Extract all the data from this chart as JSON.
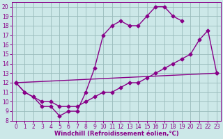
{
  "xlabel": "Windchill (Refroidissement éolien,°C)",
  "bg_color": "#cce8e8",
  "line_color": "#880088",
  "grid_color": "#99bbbb",
  "xlim": [
    -0.5,
    23.5
  ],
  "ylim": [
    8,
    20.5
  ],
  "xticks": [
    0,
    1,
    2,
    3,
    4,
    5,
    6,
    7,
    8,
    9,
    10,
    11,
    12,
    13,
    14,
    15,
    16,
    17,
    18,
    19,
    20,
    21,
    22,
    23
  ],
  "yticks": [
    8,
    9,
    10,
    11,
    12,
    13,
    14,
    15,
    16,
    17,
    18,
    19,
    20
  ],
  "line1_x": [
    0,
    1,
    2,
    3,
    4,
    5,
    6,
    7,
    8,
    9,
    10,
    11,
    12,
    13,
    14,
    15,
    16,
    17,
    18,
    19
  ],
  "line1_y": [
    12,
    11,
    10.5,
    9.5,
    9.5,
    8.5,
    9,
    9,
    11,
    13.5,
    17,
    18,
    18.5,
    18,
    18,
    19,
    20,
    20,
    19,
    18.5
  ],
  "line2_x": [
    0,
    1,
    2,
    3,
    4,
    5,
    6,
    7,
    8,
    9,
    10,
    11,
    12,
    13,
    14,
    15,
    16,
    17,
    18,
    19,
    20,
    21,
    22,
    23
  ],
  "line2_y": [
    12,
    11,
    10.5,
    10,
    10,
    9.5,
    9.5,
    9.5,
    10,
    10.5,
    11,
    11,
    11.5,
    12,
    12,
    12.5,
    13,
    13.5,
    14,
    14.5,
    15,
    16.5,
    17.5,
    13
  ],
  "line3_x": [
    0,
    23
  ],
  "line3_y": [
    12,
    13
  ],
  "marker": "D",
  "markersize": 2.5,
  "linewidth": 1.0,
  "tick_fontsize": 5.5,
  "xlabel_fontsize": 6.0
}
